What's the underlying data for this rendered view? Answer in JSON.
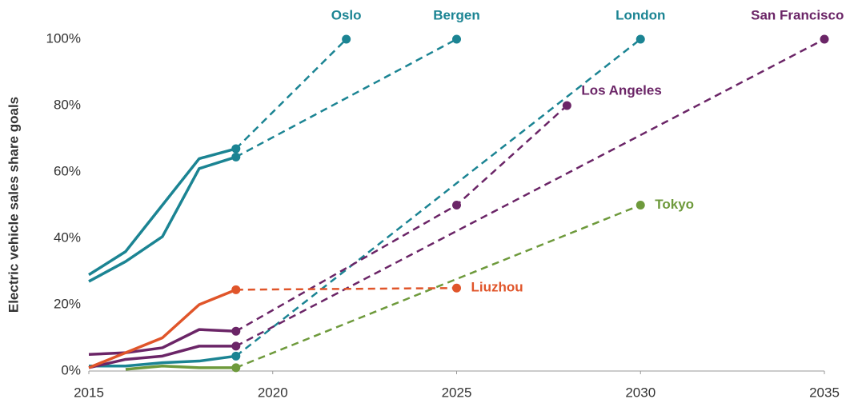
{
  "chart_data": {
    "type": "line",
    "ylabel": "Electric vehicle sales share goals",
    "xlim": [
      2015,
      2035
    ],
    "xticks": [
      2015,
      2020,
      2025,
      2030,
      2035
    ],
    "ylim": [
      0,
      100
    ],
    "yticks": [
      {
        "value": 0,
        "label": "0%"
      },
      {
        "value": 20,
        "label": "20%"
      },
      {
        "value": 40,
        "label": "40%"
      },
      {
        "value": 60,
        "label": "60%"
      },
      {
        "value": 80,
        "label": "80%"
      },
      {
        "value": 100,
        "label": "100%"
      }
    ],
    "series": [
      {
        "name": "Oslo",
        "color": "#1b8493",
        "x": [
          2015,
          2016,
          2017,
          2018,
          2019
        ],
        "values": [
          29,
          36,
          50,
          64,
          67
        ],
        "goals_x": [
          2022
        ],
        "goals": [
          100
        ]
      },
      {
        "name": "Bergen",
        "color": "#1b8493",
        "x": [
          2015,
          2016,
          2017,
          2018,
          2019
        ],
        "values": [
          27,
          33,
          40.5,
          61,
          64.5
        ],
        "goals_x": [
          2025
        ],
        "goals": [
          100
        ]
      },
      {
        "name": "London",
        "color": "#1b8493",
        "x": [
          2015,
          2016,
          2017,
          2018,
          2019
        ],
        "values": [
          1.5,
          1.5,
          2.5,
          3,
          4.5
        ],
        "goals_x": [
          2030
        ],
        "goals": [
          100
        ]
      },
      {
        "name": "San Francisco",
        "color": "#6b2567",
        "x": [
          2015,
          2016,
          2017,
          2018,
          2019
        ],
        "values": [
          1,
          3.5,
          4.5,
          7.5,
          7.5
        ],
        "goals_x": [
          2035
        ],
        "goals": [
          100
        ]
      },
      {
        "name": "Los Angeles",
        "color": "#6b2567",
        "x": [
          2015,
          2016,
          2017,
          2018,
          2019
        ],
        "values": [
          5,
          5.5,
          7,
          12.5,
          12
        ],
        "goals_x": [
          2025,
          2028
        ],
        "goals": [
          50,
          80
        ]
      },
      {
        "name": "Tokyo",
        "color": "#6e9a3c",
        "x": [
          2016,
          2017,
          2018,
          2019
        ],
        "values": [
          0.5,
          1.5,
          1,
          1
        ],
        "goals_x": [
          2030
        ],
        "goals": [
          50
        ]
      },
      {
        "name": "Liuzhou",
        "color": "#e0552a",
        "x": [
          2015,
          2016,
          2017,
          2018,
          2019
        ],
        "values": [
          1,
          5.5,
          10,
          20,
          24.5
        ],
        "goals_x": [
          2025
        ],
        "goals": [
          25
        ]
      }
    ]
  }
}
